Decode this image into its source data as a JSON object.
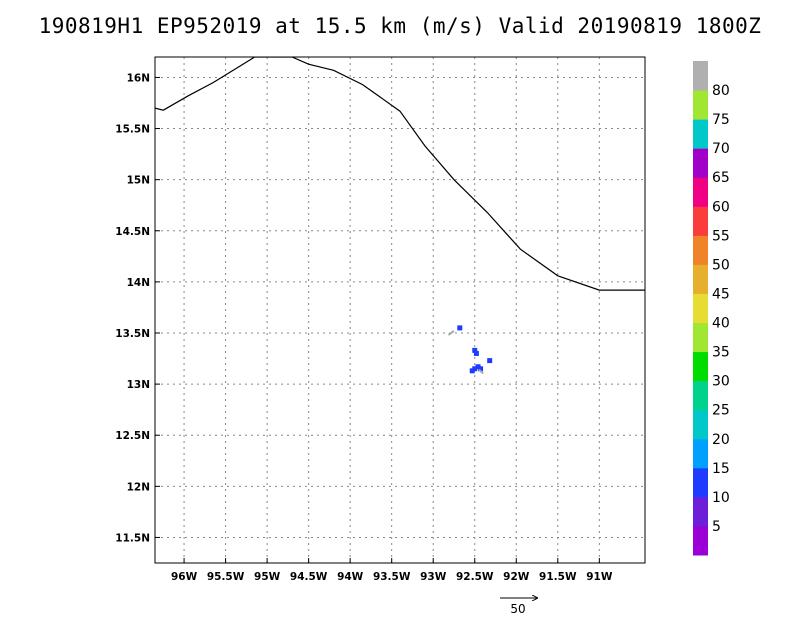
{
  "title": "190819H1 EP952019 at 15.5 km (m/s) Valid 20190819 1800Z",
  "map": {
    "lon_range": [
      -96.35,
      -90.45
    ],
    "lat_range": [
      11.25,
      16.2
    ],
    "lon_ticks": [
      -96,
      -95.5,
      -95,
      -94.5,
      -94,
      -93.5,
      -93,
      -92.5,
      -92,
      -91.5,
      -91
    ],
    "lon_tick_labels": [
      "96W",
      "95.5W",
      "95W",
      "94.5W",
      "94W",
      "93.5W",
      "93W",
      "92.5W",
      "92W",
      "91.5W",
      "91W"
    ],
    "lat_ticks": [
      11.5,
      12,
      12.5,
      13,
      13.5,
      14,
      14.5,
      15,
      15.5,
      16
    ],
    "lat_tick_labels": [
      "11.5N",
      "12N",
      "12.5N",
      "13N",
      "13.5N",
      "14N",
      "14.5N",
      "15N",
      "15.5N",
      "16N"
    ],
    "grid": true,
    "coastline": [
      [
        -96.35,
        15.7
      ],
      [
        -96.25,
        15.68
      ],
      [
        -95.95,
        15.82
      ],
      [
        -95.65,
        15.95
      ],
      [
        -95.35,
        16.1
      ],
      [
        -95.15,
        16.2
      ],
      [
        -94.7,
        16.2
      ],
      [
        -94.5,
        16.13
      ],
      [
        -94.2,
        16.07
      ],
      [
        -93.85,
        15.93
      ],
      [
        -93.4,
        15.67
      ],
      [
        -93.1,
        15.33
      ],
      [
        -92.75,
        15.0
      ],
      [
        -92.35,
        14.68
      ],
      [
        -91.95,
        14.32
      ],
      [
        -91.5,
        14.06
      ],
      [
        -91.0,
        13.92
      ],
      [
        -90.45,
        13.92
      ]
    ],
    "wind_pixels": [
      {
        "lon": -92.68,
        "lat": 13.55,
        "value": 12
      },
      {
        "lon": -92.5,
        "lat": 13.33,
        "value": 11
      },
      {
        "lon": -92.48,
        "lat": 13.3,
        "value": 12
      },
      {
        "lon": -92.32,
        "lat": 13.23,
        "value": 10
      },
      {
        "lon": -92.46,
        "lat": 13.17,
        "value": 12
      },
      {
        "lon": -92.5,
        "lat": 13.15,
        "value": 11
      },
      {
        "lon": -92.53,
        "lat": 13.13,
        "value": 12
      },
      {
        "lon": -92.43,
        "lat": 13.15,
        "value": 10
      }
    ],
    "wind_vectors": [
      {
        "lon": -92.75,
        "lat": 13.52,
        "u": -2.5,
        "v": -1.8
      },
      {
        "lon": -92.45,
        "lat": 13.14,
        "u": 2.0,
        "v": -1.6
      }
    ],
    "reference_vector": {
      "label": "50",
      "magnitude": 50
    }
  },
  "colorbar": {
    "labels": [
      "5",
      "10",
      "15",
      "20",
      "25",
      "30",
      "35",
      "40",
      "45",
      "50",
      "55",
      "60",
      "65",
      "70",
      "75",
      "80"
    ],
    "colors": [
      "#9a00d6",
      "#6e1ed8",
      "#1e3cff",
      "#00a0ff",
      "#00c8c8",
      "#00d28c",
      "#00dc00",
      "#a0e632",
      "#e6dc32",
      "#e6af2d",
      "#f08228",
      "#fa3c3c",
      "#f00082",
      "#a000c8",
      "#00c8c8",
      "#a0e632",
      "#b0b0b0"
    ]
  }
}
